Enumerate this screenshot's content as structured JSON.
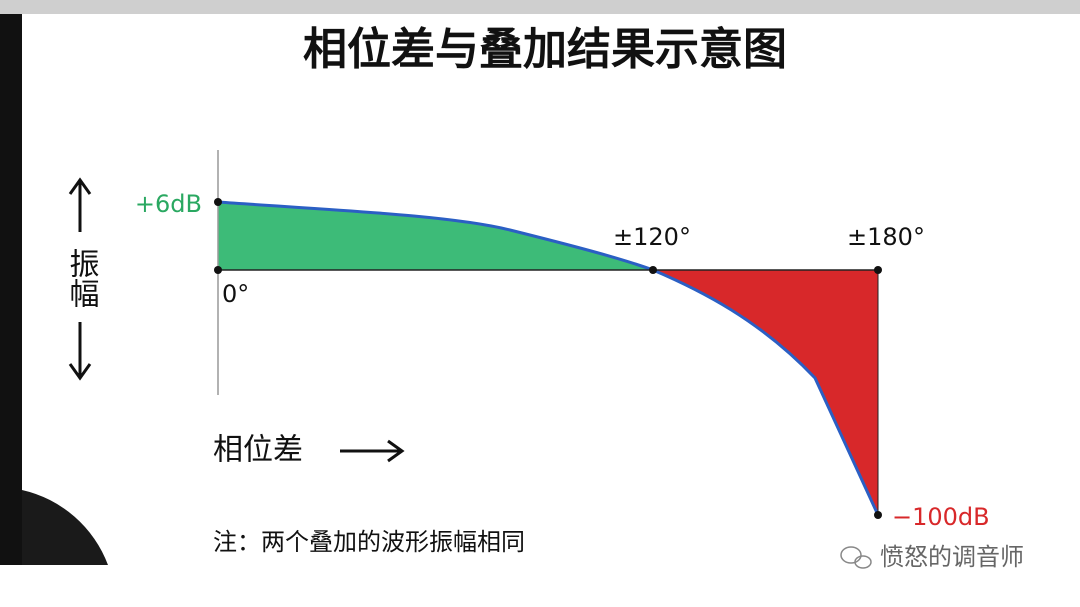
{
  "header": {
    "title": "相位差与叠加结果示意图"
  },
  "axes": {
    "y_label": "振幅",
    "x_label": "相位差"
  },
  "labels": {
    "max": "+6dB",
    "origin": "0°",
    "mid": "±120°",
    "end": "±180°",
    "min": "−100dB"
  },
  "note": "注：两个叠加的波形振幅相同",
  "watermark": "愤怒的调音师"
}
